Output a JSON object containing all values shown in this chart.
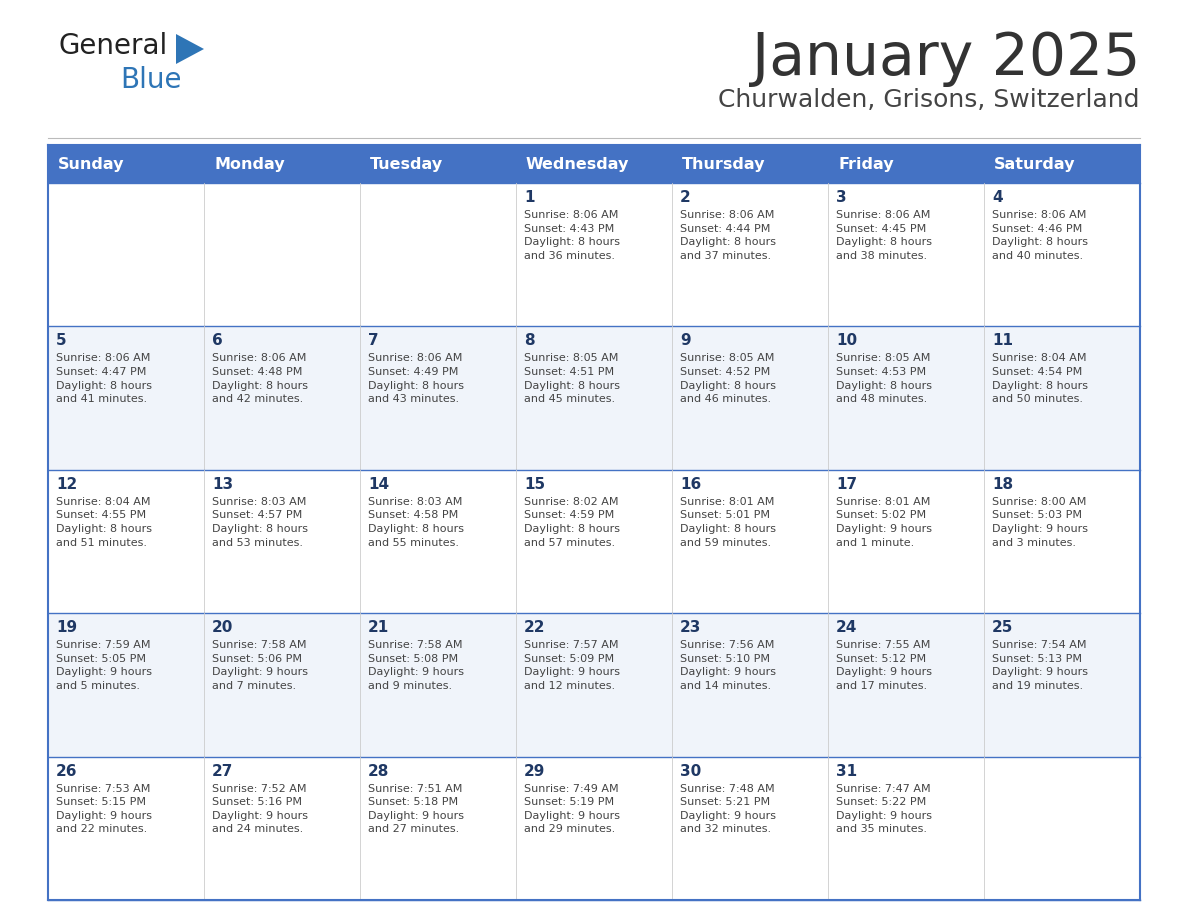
{
  "title": "January 2025",
  "subtitle": "Churwalden, Grisons, Switzerland",
  "header_bg_color": "#4472C4",
  "header_text_color": "#FFFFFF",
  "row_bg_odd": "#FFFFFF",
  "row_bg_even": "#F0F4FA",
  "cell_text_color": "#444444",
  "day_number_color": "#1F3864",
  "border_color": "#4472C4",
  "inner_border_color": "#AAAAAA",
  "days_of_week": [
    "Sunday",
    "Monday",
    "Tuesday",
    "Wednesday",
    "Thursday",
    "Friday",
    "Saturday"
  ],
  "calendar": [
    [
      {
        "day": "",
        "info": ""
      },
      {
        "day": "",
        "info": ""
      },
      {
        "day": "",
        "info": ""
      },
      {
        "day": "1",
        "info": "Sunrise: 8:06 AM\nSunset: 4:43 PM\nDaylight: 8 hours\nand 36 minutes."
      },
      {
        "day": "2",
        "info": "Sunrise: 8:06 AM\nSunset: 4:44 PM\nDaylight: 8 hours\nand 37 minutes."
      },
      {
        "day": "3",
        "info": "Sunrise: 8:06 AM\nSunset: 4:45 PM\nDaylight: 8 hours\nand 38 minutes."
      },
      {
        "day": "4",
        "info": "Sunrise: 8:06 AM\nSunset: 4:46 PM\nDaylight: 8 hours\nand 40 minutes."
      }
    ],
    [
      {
        "day": "5",
        "info": "Sunrise: 8:06 AM\nSunset: 4:47 PM\nDaylight: 8 hours\nand 41 minutes."
      },
      {
        "day": "6",
        "info": "Sunrise: 8:06 AM\nSunset: 4:48 PM\nDaylight: 8 hours\nand 42 minutes."
      },
      {
        "day": "7",
        "info": "Sunrise: 8:06 AM\nSunset: 4:49 PM\nDaylight: 8 hours\nand 43 minutes."
      },
      {
        "day": "8",
        "info": "Sunrise: 8:05 AM\nSunset: 4:51 PM\nDaylight: 8 hours\nand 45 minutes."
      },
      {
        "day": "9",
        "info": "Sunrise: 8:05 AM\nSunset: 4:52 PM\nDaylight: 8 hours\nand 46 minutes."
      },
      {
        "day": "10",
        "info": "Sunrise: 8:05 AM\nSunset: 4:53 PM\nDaylight: 8 hours\nand 48 minutes."
      },
      {
        "day": "11",
        "info": "Sunrise: 8:04 AM\nSunset: 4:54 PM\nDaylight: 8 hours\nand 50 minutes."
      }
    ],
    [
      {
        "day": "12",
        "info": "Sunrise: 8:04 AM\nSunset: 4:55 PM\nDaylight: 8 hours\nand 51 minutes."
      },
      {
        "day": "13",
        "info": "Sunrise: 8:03 AM\nSunset: 4:57 PM\nDaylight: 8 hours\nand 53 minutes."
      },
      {
        "day": "14",
        "info": "Sunrise: 8:03 AM\nSunset: 4:58 PM\nDaylight: 8 hours\nand 55 minutes."
      },
      {
        "day": "15",
        "info": "Sunrise: 8:02 AM\nSunset: 4:59 PM\nDaylight: 8 hours\nand 57 minutes."
      },
      {
        "day": "16",
        "info": "Sunrise: 8:01 AM\nSunset: 5:01 PM\nDaylight: 8 hours\nand 59 minutes."
      },
      {
        "day": "17",
        "info": "Sunrise: 8:01 AM\nSunset: 5:02 PM\nDaylight: 9 hours\nand 1 minute."
      },
      {
        "day": "18",
        "info": "Sunrise: 8:00 AM\nSunset: 5:03 PM\nDaylight: 9 hours\nand 3 minutes."
      }
    ],
    [
      {
        "day": "19",
        "info": "Sunrise: 7:59 AM\nSunset: 5:05 PM\nDaylight: 9 hours\nand 5 minutes."
      },
      {
        "day": "20",
        "info": "Sunrise: 7:58 AM\nSunset: 5:06 PM\nDaylight: 9 hours\nand 7 minutes."
      },
      {
        "day": "21",
        "info": "Sunrise: 7:58 AM\nSunset: 5:08 PM\nDaylight: 9 hours\nand 9 minutes."
      },
      {
        "day": "22",
        "info": "Sunrise: 7:57 AM\nSunset: 5:09 PM\nDaylight: 9 hours\nand 12 minutes."
      },
      {
        "day": "23",
        "info": "Sunrise: 7:56 AM\nSunset: 5:10 PM\nDaylight: 9 hours\nand 14 minutes."
      },
      {
        "day": "24",
        "info": "Sunrise: 7:55 AM\nSunset: 5:12 PM\nDaylight: 9 hours\nand 17 minutes."
      },
      {
        "day": "25",
        "info": "Sunrise: 7:54 AM\nSunset: 5:13 PM\nDaylight: 9 hours\nand 19 minutes."
      }
    ],
    [
      {
        "day": "26",
        "info": "Sunrise: 7:53 AM\nSunset: 5:15 PM\nDaylight: 9 hours\nand 22 minutes."
      },
      {
        "day": "27",
        "info": "Sunrise: 7:52 AM\nSunset: 5:16 PM\nDaylight: 9 hours\nand 24 minutes."
      },
      {
        "day": "28",
        "info": "Sunrise: 7:51 AM\nSunset: 5:18 PM\nDaylight: 9 hours\nand 27 minutes."
      },
      {
        "day": "29",
        "info": "Sunrise: 7:49 AM\nSunset: 5:19 PM\nDaylight: 9 hours\nand 29 minutes."
      },
      {
        "day": "30",
        "info": "Sunrise: 7:48 AM\nSunset: 5:21 PM\nDaylight: 9 hours\nand 32 minutes."
      },
      {
        "day": "31",
        "info": "Sunrise: 7:47 AM\nSunset: 5:22 PM\nDaylight: 9 hours\nand 35 minutes."
      },
      {
        "day": "",
        "info": ""
      }
    ]
  ],
  "logo_general_color": "#222222",
  "logo_blue_color": "#2E75B6",
  "logo_triangle_color": "#2E75B6"
}
